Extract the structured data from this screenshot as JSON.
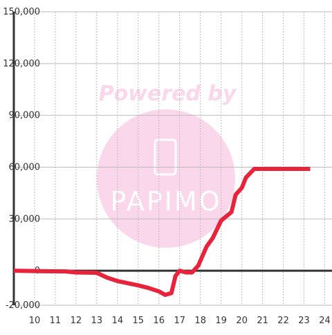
{
  "chart_data": {
    "type": "line",
    "watermark": [
      "Powered by",
      "PAPIMO"
    ],
    "x": [
      9,
      10.5,
      11.5,
      12,
      13,
      13.5,
      14,
      15,
      15.5,
      16,
      16.3,
      16.6,
      16.8,
      17,
      17.3,
      17.6,
      17.9,
      18.3,
      18.6,
      19,
      19.5,
      19.7,
      20,
      20.2,
      20.6,
      23.3
    ],
    "series": [
      {
        "color": "#e8243c",
        "values": [
          0,
          -300,
          -400,
          -1000,
          -1200,
          -4000,
          -6000,
          -8500,
          -10000,
          -12000,
          -14000,
          -13000,
          -3000,
          0,
          -1000,
          -1000,
          3000,
          14000,
          19000,
          29000,
          34000,
          44000,
          48000,
          54000,
          59000,
          59000
        ]
      }
    ],
    "xlim": [
      9,
      24.35
    ],
    "xticks": [
      10,
      11,
      12,
      13,
      14,
      15,
      16,
      17,
      18,
      19,
      20,
      21,
      22,
      23,
      24
    ],
    "ylim": [
      -20000,
      150000
    ],
    "yticks": [
      {
        "value": -20000,
        "label": "-20,000"
      },
      0,
      {
        "value": 30000,
        "label": "30,000"
      },
      {
        "value": 60000,
        "label": "60,000"
      },
      {
        "value": 90000,
        "label": "90,000"
      },
      {
        "value": 120000,
        "label": "120,000"
      },
      {
        "value": 150000,
        "label": "150,000"
      }
    ],
    "grid": true
  }
}
